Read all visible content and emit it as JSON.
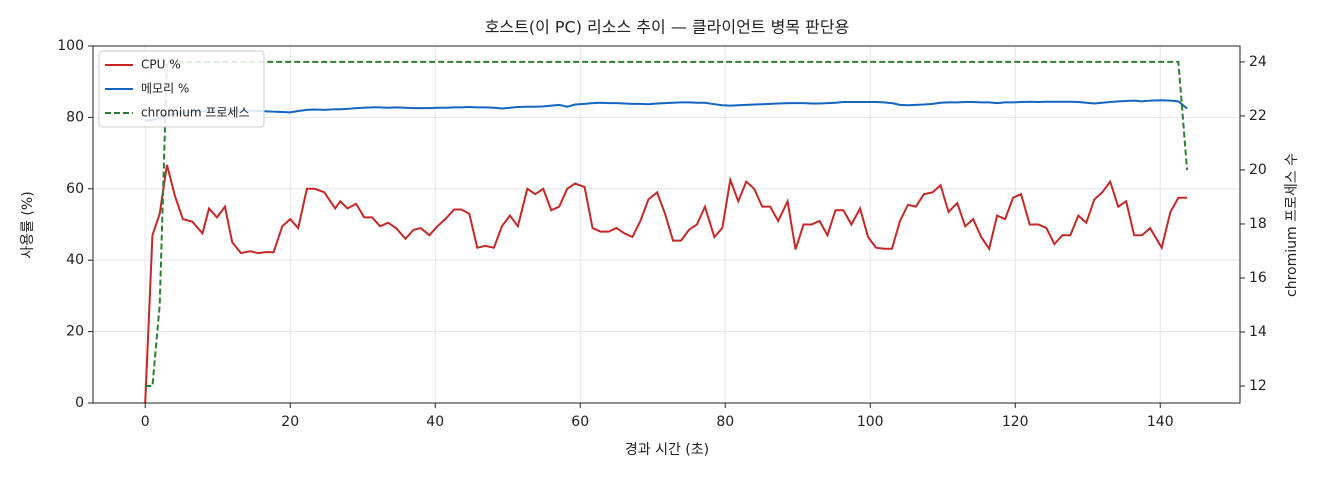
{
  "chart_data": {
    "type": "line",
    "title": "호스트(이 PC) 리소스 추이 — 클라이언트 병목 판단용",
    "xlabel": "경과 시간 (초)",
    "ylabel": "사용률 (%)",
    "y2label": "chromium 프로세스 수",
    "x": [
      0,
      1,
      2,
      3,
      4.1,
      5.2,
      6.5,
      7.9,
      8.8,
      9.9,
      11,
      12,
      13.2,
      14.5,
      15.6,
      16.7,
      17.7,
      18.9,
      20,
      21.1,
      22.3,
      23.4,
      24.7,
      26.2,
      26.9,
      27.9,
      29.1,
      30.2,
      31.3,
      32.4,
      33.5,
      34.6,
      35.9,
      37,
      38,
      39.2,
      40.3,
      41.4,
      42.6,
      43.6,
      44.7,
      45.8,
      46.9,
      48.1,
      49.2,
      50.3,
      51.4,
      52.7,
      53.8,
      54.9,
      56,
      57.1,
      58.2,
      59.3,
      60.6,
      61.7,
      62.8,
      63.9,
      65,
      66.1,
      67.2,
      68.3,
      69.4,
      70.6,
      71.7,
      72.8,
      73.9,
      75,
      76.1,
      77.2,
      78.5,
      79.6,
      80.7,
      81.8,
      82.9,
      84,
      85.1,
      86.2,
      87.3,
      88.6,
      89.7,
      90.8,
      91.9,
      93,
      94.1,
      95.2,
      96.3,
      97.4,
      98.6,
      99.7,
      100.8,
      101.9,
      103,
      104.1,
      105.2,
      106.3,
      107.4,
      108.6,
      109.7,
      110.8,
      112,
      113.1,
      114.2,
      115.3,
      116.4,
      117.5,
      118.6,
      119.7,
      120.8,
      122,
      123.2,
      124.3,
      125.4,
      126.5,
      127.6,
      128.7,
      129.8,
      130.9,
      132,
      133.1,
      134.2,
      135.3,
      136.4,
      137.5,
      138.6,
      140.2,
      141.4,
      142.5,
      143.7
    ],
    "series": [
      {
        "name": "CPU %",
        "color": "#c62828",
        "dashed": false,
        "values": [
          0,
          47,
          53,
          66.7,
          58,
          51.5,
          50.8,
          47.5,
          54.5,
          52,
          55,
          45,
          42,
          42.5,
          42,
          42.3,
          42.2,
          49.5,
          51.5,
          49,
          60,
          60,
          59,
          54.5,
          56.5,
          54.5,
          55.8,
          52,
          52,
          49.5,
          50.5,
          49,
          46,
          48.5,
          49,
          47,
          49.5,
          51.5,
          54.2,
          54.2,
          53,
          43.5,
          44,
          43.5,
          49.5,
          52.5,
          49.5,
          60,
          58.5,
          60,
          54,
          55,
          60,
          61.5,
          60.5,
          49,
          48,
          48,
          49,
          47.5,
          46.5,
          51,
          57,
          59,
          53,
          45.5,
          45.5,
          48.5,
          50,
          55,
          46.5,
          49,
          62.5,
          56.5,
          62,
          60,
          55,
          55,
          51,
          56.5,
          43,
          50,
          50,
          51,
          47,
          54,
          54,
          50,
          54.5,
          46.5,
          43.5,
          43.2,
          43.2,
          51,
          55.5,
          55,
          58.5,
          59,
          61,
          53.5,
          56,
          49.5,
          51.5,
          46.5,
          43.2,
          52.5,
          51.5,
          57.5,
          58.5,
          50,
          50,
          49,
          44.5,
          47,
          47,
          52.5,
          50.5,
          57,
          59,
          62,
          55,
          56.5,
          47,
          47,
          49,
          43.5,
          53.5,
          57.5,
          57.5
        ]
      },
      {
        "name": "메모리 %",
        "color": "#1565c0",
        "dashed": false,
        "values": [
          79,
          79.3,
          79.8,
          80.5,
          81,
          81.3,
          81.5,
          81.7,
          81.8,
          81.9,
          82,
          82,
          81.8,
          81.9,
          81.8,
          81.7,
          81.6,
          81.5,
          81.4,
          81.8,
          82.1,
          82.2,
          82.1,
          82.3,
          82.3,
          82.4,
          82.6,
          82.7,
          82.8,
          82.8,
          82.7,
          82.8,
          82.7,
          82.6,
          82.6,
          82.6,
          82.7,
          82.7,
          82.8,
          82.8,
          82.9,
          82.8,
          82.8,
          82.7,
          82.5,
          82.7,
          82.9,
          83,
          83,
          83.1,
          83.3,
          83.5,
          83,
          83.6,
          83.8,
          84,
          84.1,
          84,
          84,
          83.9,
          83.8,
          83.8,
          83.7,
          83.9,
          84,
          84.1,
          84.2,
          84.2,
          84.1,
          84.1,
          83.7,
          83.4,
          83.3,
          83.4,
          83.5,
          83.6,
          83.7,
          83.8,
          83.9,
          84,
          84,
          84,
          83.9,
          83.9,
          84,
          84.1,
          84.3,
          84.3,
          84.3,
          84.3,
          84.3,
          84.2,
          84,
          83.5,
          83.4,
          83.5,
          83.6,
          83.8,
          84.1,
          84.2,
          84.2,
          84.3,
          84.3,
          84.2,
          84.2,
          84,
          84.2,
          84.2,
          84.3,
          84.4,
          84.3,
          84.4,
          84.4,
          84.4,
          84.4,
          84.3,
          84.1,
          83.9,
          84.1,
          84.3,
          84.5,
          84.6,
          84.7,
          84.5,
          84.7,
          84.8,
          84.7,
          84.5,
          82.5
        ]
      },
      {
        "name": "chromium 프로세스",
        "color": "#2e7d32",
        "dashed": true,
        "axis": "y2",
        "values": [
          12,
          12,
          15,
          24,
          24,
          24,
          24,
          24,
          24,
          24,
          24,
          24,
          24,
          24,
          24,
          24,
          24,
          24,
          24,
          24,
          24,
          24,
          24,
          24,
          24,
          24,
          24,
          24,
          24,
          24,
          24,
          24,
          24,
          24,
          24,
          24,
          24,
          24,
          24,
          24,
          24,
          24,
          24,
          24,
          24,
          24,
          24,
          24,
          24,
          24,
          24,
          24,
          24,
          24,
          24,
          24,
          24,
          24,
          24,
          24,
          24,
          24,
          24,
          24,
          24,
          24,
          24,
          24,
          24,
          24,
          24,
          24,
          24,
          24,
          24,
          24,
          24,
          24,
          24,
          24,
          24,
          24,
          24,
          24,
          24,
          24,
          24,
          24,
          24,
          24,
          24,
          24,
          24,
          24,
          24,
          24,
          24,
          24,
          24,
          24,
          24,
          24,
          24,
          24,
          24,
          24,
          24,
          24,
          24,
          24,
          24,
          24,
          24,
          24,
          24,
          24,
          24,
          24,
          24,
          24,
          24,
          24,
          24,
          24,
          24,
          24,
          24,
          24,
          20
        ]
      }
    ],
    "xlim": [
      -7.2,
      151.0
    ],
    "xticks": [
      0,
      20,
      40,
      60,
      80,
      100,
      120,
      140
    ],
    "ylim": [
      0,
      100
    ],
    "yticks": [
      0,
      20,
      40,
      60,
      80,
      100
    ],
    "y2lim": [
      11.37,
      24.59
    ],
    "y2ticks": [
      12,
      14,
      16,
      18,
      20,
      22,
      24
    ],
    "grid": true,
    "legend": "upper left"
  }
}
